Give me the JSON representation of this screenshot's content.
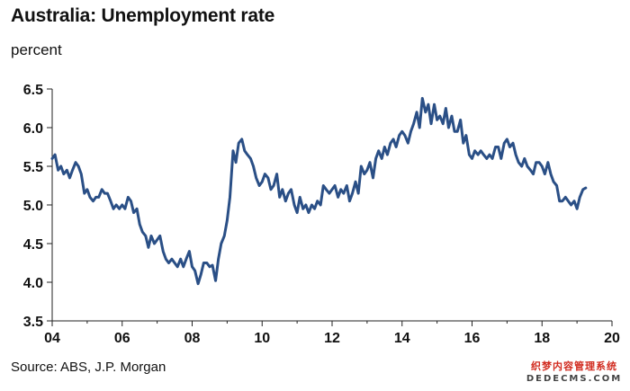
{
  "header": {
    "title": "Australia: Unemployment rate",
    "subtitle": "percent"
  },
  "footer": {
    "source": "Source: ABS, J.P. Morgan"
  },
  "watermark": {
    "line1": "织梦内容管理系统",
    "line2": "DEDECMS.COM"
  },
  "chart_data": {
    "type": "line",
    "title": "Australia: Unemployment rate",
    "subtitle": "percent",
    "xlabel": "",
    "ylabel": "percent",
    "xlim": [
      2004,
      2020
    ],
    "ylim": [
      3.5,
      6.5
    ],
    "grid": false,
    "x_ticks": [
      2004,
      2006,
      2008,
      2010,
      2012,
      2014,
      2016,
      2018,
      2020
    ],
    "x_tick_labels": [
      "04",
      "06",
      "08",
      "10",
      "12",
      "14",
      "16",
      "18",
      "20"
    ],
    "y_ticks": [
      3.5,
      4.0,
      4.5,
      5.0,
      5.5,
      6.0,
      6.5
    ],
    "y_tick_labels": [
      "3.5",
      "4.0",
      "4.5",
      "5.0",
      "5.5",
      "6.0",
      "6.5"
    ],
    "line_color": "#2a4f86",
    "series": [
      {
        "x": [
          2004.0,
          2004.08,
          2004.17,
          2004.25,
          2004.33,
          2004.42,
          2004.5,
          2004.58,
          2004.67,
          2004.75,
          2004.83,
          2004.92,
          2005.0,
          2005.08,
          2005.17,
          2005.25,
          2005.33,
          2005.42,
          2005.5,
          2005.58,
          2005.67,
          2005.75,
          2005.83,
          2005.92,
          2006.0,
          2006.08,
          2006.17,
          2006.25,
          2006.33,
          2006.42,
          2006.5,
          2006.58,
          2006.67,
          2006.75,
          2006.83,
          2006.92,
          2007.0,
          2007.08,
          2007.17,
          2007.25,
          2007.33,
          2007.42,
          2007.5,
          2007.58,
          2007.67,
          2007.75,
          2007.83,
          2007.92,
          2008.0,
          2008.08,
          2008.17,
          2008.25,
          2008.33,
          2008.42,
          2008.5,
          2008.58,
          2008.67,
          2008.75,
          2008.83,
          2008.92,
          2009.0,
          2009.08,
          2009.17,
          2009.25,
          2009.33,
          2009.42,
          2009.5,
          2009.58,
          2009.67,
          2009.75,
          2009.83,
          2009.92,
          2010.0,
          2010.08,
          2010.17,
          2010.25,
          2010.33,
          2010.42,
          2010.5,
          2010.58,
          2010.67,
          2010.75,
          2010.83,
          2010.92,
          2011.0,
          2011.08,
          2011.17,
          2011.25,
          2011.33,
          2011.42,
          2011.5,
          2011.58,
          2011.67,
          2011.75,
          2011.83,
          2011.92,
          2012.0,
          2012.08,
          2012.17,
          2012.25,
          2012.33,
          2012.42,
          2012.5,
          2012.58,
          2012.67,
          2012.75,
          2012.83,
          2012.92,
          2013.0,
          2013.08,
          2013.17,
          2013.25,
          2013.33,
          2013.42,
          2013.5,
          2013.58,
          2013.67,
          2013.75,
          2013.83,
          2013.92,
          2014.0,
          2014.08,
          2014.17,
          2014.25,
          2014.33,
          2014.42,
          2014.5,
          2014.58,
          2014.67,
          2014.75,
          2014.83,
          2014.92,
          2015.0,
          2015.08,
          2015.17,
          2015.25,
          2015.33,
          2015.42,
          2015.5,
          2015.58,
          2015.67,
          2015.75,
          2015.83,
          2015.92,
          2016.0,
          2016.08,
          2016.17,
          2016.25,
          2016.33,
          2016.42,
          2016.5,
          2016.58,
          2016.67,
          2016.75,
          2016.83,
          2016.92,
          2017.0,
          2017.08,
          2017.17,
          2017.25,
          2017.33,
          2017.42,
          2017.5,
          2017.58,
          2017.67,
          2017.75,
          2017.83,
          2017.92,
          2018.0,
          2018.08,
          2018.17,
          2018.25,
          2018.33,
          2018.42,
          2018.5,
          2018.58,
          2018.67,
          2018.75,
          2018.83,
          2018.92,
          2019.0,
          2019.08,
          2019.17,
          2019.25
        ],
        "values": [
          5.6,
          5.65,
          5.45,
          5.5,
          5.4,
          5.45,
          5.35,
          5.45,
          5.55,
          5.5,
          5.4,
          5.15,
          5.2,
          5.1,
          5.05,
          5.1,
          5.1,
          5.2,
          5.15,
          5.15,
          5.05,
          4.95,
          5.0,
          4.95,
          5.0,
          4.95,
          5.1,
          5.05,
          4.9,
          4.95,
          4.75,
          4.65,
          4.6,
          4.45,
          4.6,
          4.5,
          4.55,
          4.6,
          4.4,
          4.3,
          4.25,
          4.3,
          4.25,
          4.2,
          4.3,
          4.2,
          4.3,
          4.4,
          4.2,
          4.15,
          3.98,
          4.1,
          4.25,
          4.25,
          4.2,
          4.22,
          4.02,
          4.3,
          4.5,
          4.6,
          4.8,
          5.1,
          5.7,
          5.55,
          5.8,
          5.85,
          5.7,
          5.65,
          5.6,
          5.5,
          5.35,
          5.25,
          5.3,
          5.4,
          5.35,
          5.2,
          5.25,
          5.4,
          5.1,
          5.2,
          5.05,
          5.15,
          5.2,
          5.0,
          4.9,
          5.1,
          4.95,
          5.0,
          4.9,
          5.0,
          4.95,
          5.05,
          5.0,
          5.25,
          5.2,
          5.15,
          5.2,
          5.25,
          5.1,
          5.2,
          5.15,
          5.25,
          5.05,
          5.15,
          5.3,
          5.15,
          5.5,
          5.4,
          5.45,
          5.55,
          5.35,
          5.6,
          5.7,
          5.6,
          5.75,
          5.65,
          5.8,
          5.85,
          5.75,
          5.9,
          5.95,
          5.9,
          5.8,
          5.95,
          6.05,
          6.2,
          6.0,
          6.38,
          6.2,
          6.3,
          6.05,
          6.3,
          6.1,
          6.15,
          6.05,
          6.25,
          6.0,
          6.15,
          5.95,
          5.95,
          6.1,
          5.8,
          5.9,
          5.65,
          5.6,
          5.7,
          5.65,
          5.7,
          5.65,
          5.6,
          5.65,
          5.6,
          5.75,
          5.75,
          5.6,
          5.8,
          5.85,
          5.75,
          5.8,
          5.65,
          5.55,
          5.5,
          5.6,
          5.5,
          5.45,
          5.4,
          5.55,
          5.55,
          5.5,
          5.4,
          5.55,
          5.4,
          5.3,
          5.25,
          5.05,
          5.05,
          5.1,
          5.05,
          5.0,
          5.05,
          4.95,
          5.1,
          5.2,
          5.22
        ]
      }
    ]
  }
}
